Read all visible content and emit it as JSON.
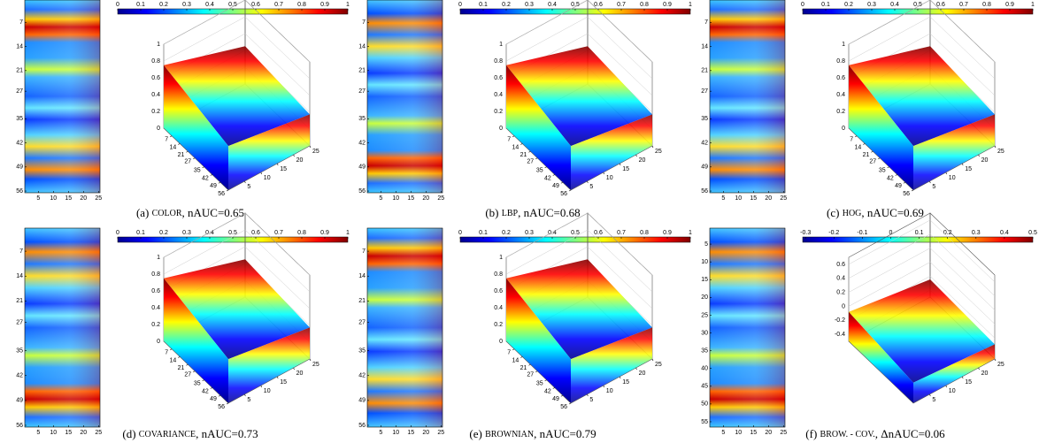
{
  "panels": [
    {
      "label": "(a)",
      "name": "COLOR",
      "metric": "nAUC=0.65",
      "colorbar": {
        "lim": [
          0,
          1
        ],
        "ticks": [
          0,
          0.1,
          0.2,
          0.3,
          0.4,
          0.5,
          0.6,
          0.7,
          0.8,
          0.9,
          1
        ]
      },
      "heatmap": {
        "xlim": [
          0.5,
          25.5
        ],
        "ylim": [
          0.5,
          56.5
        ],
        "xticks": [
          5,
          10,
          15,
          20,
          25
        ],
        "yticks": [
          7,
          14,
          21,
          27,
          35,
          42,
          49,
          56
        ]
      },
      "surface": {
        "zlim": [
          0,
          1
        ],
        "zticks": [
          0,
          0.2,
          0.4,
          0.6,
          0.8,
          1
        ],
        "rlim": [
          0,
          56
        ],
        "rticks": [
          7,
          14,
          21,
          27,
          35,
          42,
          49,
          56
        ],
        "clim": [
          0,
          25
        ],
        "cticks": [
          5,
          10,
          15,
          20,
          25
        ]
      }
    },
    {
      "label": "(b)",
      "name": "LBP",
      "metric": "nAUC=0.68",
      "colorbar": {
        "lim": [
          0,
          1
        ],
        "ticks": [
          0,
          0.1,
          0.2,
          0.3,
          0.4,
          0.5,
          0.6,
          0.7,
          0.8,
          0.9,
          1
        ]
      },
      "heatmap": {
        "xlim": [
          0.5,
          25.5
        ],
        "ylim": [
          0.5,
          56.5
        ],
        "xticks": [
          5,
          10,
          15,
          20,
          25
        ],
        "yticks": [
          7,
          14,
          21,
          27,
          35,
          42,
          49,
          56
        ]
      },
      "surface": {
        "zlim": [
          0,
          1
        ],
        "zticks": [
          0,
          0.2,
          0.4,
          0.6,
          0.8,
          1
        ],
        "rlim": [
          0,
          56
        ],
        "rticks": [
          7,
          14,
          21,
          27,
          35,
          42,
          49,
          56
        ],
        "clim": [
          0,
          25
        ],
        "cticks": [
          5,
          10,
          15,
          20,
          25
        ]
      }
    },
    {
      "label": "(c)",
      "name": "HOG",
      "metric": "nAUC=0.69",
      "colorbar": {
        "lim": [
          0,
          1
        ],
        "ticks": [
          0,
          0.1,
          0.2,
          0.3,
          0.4,
          0.5,
          0.6,
          0.7,
          0.8,
          0.9,
          1
        ]
      },
      "heatmap": {
        "xlim": [
          0.5,
          25.5
        ],
        "ylim": [
          0.5,
          56.5
        ],
        "xticks": [
          5,
          10,
          15,
          20,
          25
        ],
        "yticks": [
          7,
          14,
          21,
          27,
          35,
          42,
          49,
          56
        ]
      },
      "surface": {
        "zlim": [
          0,
          1
        ],
        "zticks": [
          0,
          0.2,
          0.4,
          0.6,
          0.8,
          1
        ],
        "rlim": [
          0,
          56
        ],
        "rticks": [
          7,
          14,
          21,
          27,
          35,
          42,
          49,
          56
        ],
        "clim": [
          0,
          25
        ],
        "cticks": [
          5,
          10,
          15,
          20,
          25
        ]
      }
    },
    {
      "label": "(d)",
      "name": "COVARIANCE",
      "metric": "nAUC=0.73",
      "colorbar": {
        "lim": [
          0,
          1
        ],
        "ticks": [
          0,
          0.1,
          0.2,
          0.3,
          0.4,
          0.5,
          0.6,
          0.7,
          0.8,
          0.9,
          1
        ]
      },
      "heatmap": {
        "xlim": [
          0.5,
          25.5
        ],
        "ylim": [
          0.5,
          56.5
        ],
        "xticks": [
          5,
          10,
          15,
          20,
          25
        ],
        "yticks": [
          7,
          14,
          21,
          27,
          35,
          42,
          49,
          56
        ]
      },
      "surface": {
        "zlim": [
          0,
          1
        ],
        "zticks": [
          0,
          0.2,
          0.4,
          0.6,
          0.8,
          1
        ],
        "rlim": [
          0,
          56
        ],
        "rticks": [
          7,
          14,
          21,
          27,
          35,
          42,
          49,
          56
        ],
        "clim": [
          0,
          25
        ],
        "cticks": [
          5,
          10,
          15,
          20,
          25
        ]
      }
    },
    {
      "label": "(e)",
      "name": "BROWNIAN",
      "metric": "nAUC=0.79",
      "colorbar": {
        "lim": [
          0,
          1
        ],
        "ticks": [
          0,
          0.1,
          0.2,
          0.3,
          0.4,
          0.5,
          0.6,
          0.7,
          0.8,
          0.9,
          1
        ]
      },
      "heatmap": {
        "xlim": [
          0.5,
          25.5
        ],
        "ylim": [
          0.5,
          56.5
        ],
        "xticks": [
          5,
          10,
          15,
          20,
          25
        ],
        "yticks": [
          7,
          14,
          21,
          27,
          35,
          42,
          49,
          56
        ]
      },
      "surface": {
        "zlim": [
          0,
          1
        ],
        "zticks": [
          0,
          0.2,
          0.4,
          0.6,
          0.8,
          1
        ],
        "rlim": [
          0,
          56
        ],
        "rticks": [
          7,
          14,
          21,
          27,
          35,
          42,
          49,
          56
        ],
        "clim": [
          0,
          25
        ],
        "cticks": [
          5,
          10,
          15,
          20,
          25
        ]
      }
    },
    {
      "label": "(f)",
      "name": "BROW. - COV.",
      "metric": "ΔnAUC=0.06",
      "colorbar": {
        "lim": [
          -0.31,
          0.5
        ],
        "ticks": [
          -0.3,
          -0.2,
          -0.1,
          0,
          0.1,
          0.2,
          0.3,
          0.4,
          0.5
        ]
      },
      "heatmap": {
        "xlim": [
          0.5,
          25.5
        ],
        "ylim": [
          0.5,
          56.5
        ],
        "xticks": [
          5,
          10,
          15,
          20,
          25
        ],
        "yticks": [
          5,
          10,
          15,
          20,
          25,
          30,
          35,
          40,
          45,
          50,
          55
        ]
      },
      "surface": {
        "zlim": [
          -0.5,
          0.7
        ],
        "zticks": [
          -0.4,
          -0.2,
          0,
          0.2,
          0.4,
          0.6
        ],
        "rlim": null,
        "rticks": [],
        "clim": [
          0,
          25
        ],
        "cticks": [
          5,
          10,
          15,
          20,
          25
        ]
      }
    }
  ]
}
